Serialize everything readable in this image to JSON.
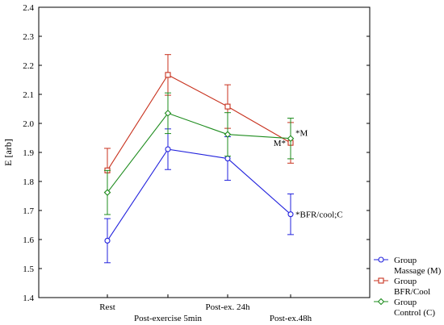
{
  "chart_data": {
    "type": "line",
    "ylabel": "E [arb]",
    "xlabel": "",
    "ylim": [
      1.4,
      2.4
    ],
    "yticks": [
      "1.4",
      "1.5",
      "1.6",
      "1.7",
      "1.8",
      "1.9",
      "2.0",
      "2.1",
      "2.2",
      "2.3",
      "2.4"
    ],
    "categories": [
      "Rest",
      "Post-exercise 5min",
      "Post-ex. 24h",
      "Post-ex.48h"
    ],
    "grid": false,
    "legend_position": "bottom-right",
    "series": [
      {
        "name_line1": "Group",
        "name_line2": "Massage (M)",
        "color": "#2222dd",
        "marker": "circle",
        "values": [
          1.596,
          1.911,
          1.879,
          1.687
        ],
        "err": [
          0.076,
          0.07,
          0.075,
          0.07
        ]
      },
      {
        "name_line1": "Group",
        "name_line2": "BFR/Cool",
        "color": "#c8321e",
        "marker": "square",
        "values": [
          1.838,
          2.167,
          2.058,
          1.933
        ],
        "err": [
          0.076,
          0.07,
          0.075,
          0.07
        ]
      },
      {
        "name_line1": "Group",
        "name_line2": "Control (C)",
        "color": "#1e8c1e",
        "marker": "diamond",
        "values": [
          1.762,
          2.035,
          1.962,
          1.948
        ],
        "err": [
          0.076,
          0.07,
          0.075,
          0.07
        ]
      }
    ],
    "annotations": [
      {
        "text": "*BFR/cool;C",
        "series": 0,
        "category": 3
      },
      {
        "text": "M*",
        "series": 1,
        "category": 3
      },
      {
        "text": "*M",
        "series": 2,
        "category": 3
      }
    ]
  }
}
